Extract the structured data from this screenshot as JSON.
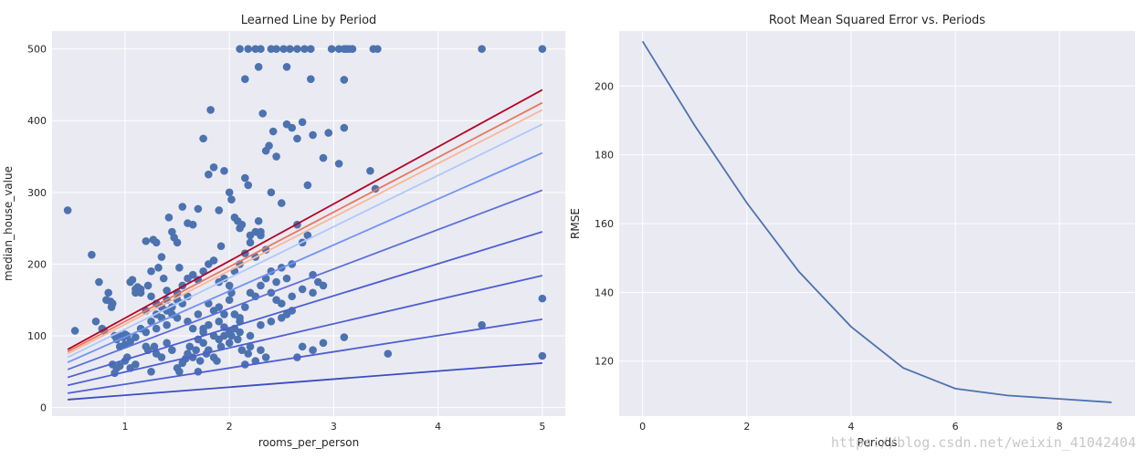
{
  "watermark": "https://blog.csdn.net/weixin_41042404",
  "chart_data": [
    {
      "type": "scatter",
      "title": "Learned Line by Period",
      "xlabel": "rooms_per_person",
      "ylabel": "median_house_value",
      "xlim": [
        0.3,
        5.22
      ],
      "ylim": [
        -12,
        525
      ],
      "xticks": [
        1,
        2,
        3,
        4,
        5
      ],
      "yticks": [
        0,
        100,
        200,
        300,
        400,
        500
      ],
      "grid": true,
      "legend": "none",
      "point_color": "#4c72b0",
      "lines": {
        "x_range": [
          0.45,
          5.0
        ],
        "series": [
          {
            "color": "#3b4cc0",
            "y": [
              11,
              62
            ]
          },
          {
            "color": "#4d5fd0",
            "y": [
              20,
              123
            ]
          },
          {
            "color": "#4d5fd0",
            "y": [
              31,
              184
            ]
          },
          {
            "color": "#4d5fd0",
            "y": [
              42,
              245
            ]
          },
          {
            "color": "#5a6fd8",
            "y": [
              53,
              303
            ]
          },
          {
            "color": "#7093f3",
            "y": [
              63,
              355
            ]
          },
          {
            "color": "#aec9fc",
            "y": [
              70,
              395
            ]
          },
          {
            "color": "#f7b89c",
            "y": [
              75,
              415
            ]
          },
          {
            "color": "#e8765c",
            "y": [
              78,
              425
            ]
          },
          {
            "color": "#b40426",
            "y": [
              81,
              443
            ]
          }
        ]
      },
      "points": [
        [
          0.45,
          275
        ],
        [
          0.52,
          107
        ],
        [
          0.68,
          213
        ],
        [
          0.72,
          120
        ],
        [
          0.75,
          175
        ],
        [
          0.78,
          110
        ],
        [
          0.8,
          107
        ],
        [
          0.82,
          150
        ],
        [
          0.84,
          160
        ],
        [
          0.86,
          148
        ],
        [
          0.87,
          140
        ],
        [
          0.88,
          145
        ],
        [
          0.9,
          100
        ],
        [
          0.92,
          95
        ],
        [
          0.95,
          100
        ],
        [
          0.98,
          98
        ],
        [
          1.0,
          102
        ],
        [
          1.02,
          100
        ],
        [
          1.05,
          175
        ],
        [
          1.07,
          178
        ],
        [
          1.1,
          160
        ],
        [
          1.12,
          168
        ],
        [
          1.15,
          165
        ],
        [
          1.2,
          232
        ],
        [
          1.22,
          170
        ],
        [
          1.25,
          190
        ],
        [
          1.27,
          234
        ],
        [
          1.3,
          230
        ],
        [
          1.32,
          195
        ],
        [
          1.35,
          210
        ],
        [
          1.37,
          180
        ],
        [
          1.4,
          163
        ],
        [
          1.42,
          265
        ],
        [
          1.45,
          245
        ],
        [
          1.47,
          237
        ],
        [
          1.5,
          230
        ],
        [
          1.52,
          195
        ],
        [
          1.55,
          280
        ],
        [
          1.6,
          257
        ],
        [
          1.65,
          255
        ],
        [
          1.7,
          277
        ],
        [
          1.75,
          375
        ],
        [
          1.8,
          325
        ],
        [
          1.82,
          415
        ],
        [
          1.85,
          335
        ],
        [
          1.9,
          275
        ],
        [
          1.92,
          225
        ],
        [
          1.95,
          330
        ],
        [
          2.0,
          300
        ],
        [
          2.02,
          290
        ],
        [
          2.05,
          265
        ],
        [
          2.08,
          260
        ],
        [
          2.1,
          250
        ],
        [
          2.12,
          255
        ],
        [
          2.15,
          320
        ],
        [
          2.18,
          310
        ],
        [
          2.2,
          240
        ],
        [
          2.25,
          245
        ],
        [
          2.28,
          260
        ],
        [
          2.3,
          245
        ],
        [
          2.32,
          410
        ],
        [
          2.35,
          358
        ],
        [
          2.38,
          365
        ],
        [
          2.4,
          300
        ],
        [
          2.42,
          385
        ],
        [
          2.45,
          350
        ],
        [
          2.5,
          285
        ],
        [
          2.55,
          395
        ],
        [
          2.6,
          390
        ],
        [
          2.65,
          375
        ],
        [
          2.7,
          398
        ],
        [
          2.75,
          310
        ],
        [
          2.8,
          380
        ],
        [
          2.9,
          348
        ],
        [
          2.95,
          383
        ],
        [
          3.05,
          340
        ],
        [
          3.1,
          390
        ],
        [
          3.35,
          330
        ],
        [
          3.4,
          305
        ],
        [
          2.15,
          458
        ],
        [
          2.28,
          475
        ],
        [
          2.55,
          475
        ],
        [
          2.78,
          458
        ],
        [
          3.1,
          457
        ],
        [
          2.1,
          500
        ],
        [
          2.18,
          500
        ],
        [
          2.25,
          500
        ],
        [
          2.3,
          500
        ],
        [
          2.4,
          500
        ],
        [
          2.45,
          500
        ],
        [
          2.52,
          500
        ],
        [
          2.58,
          500
        ],
        [
          2.65,
          500
        ],
        [
          2.72,
          500
        ],
        [
          2.78,
          500
        ],
        [
          2.98,
          500
        ],
        [
          3.05,
          500
        ],
        [
          3.1,
          500
        ],
        [
          3.12,
          500
        ],
        [
          3.15,
          500
        ],
        [
          3.18,
          500
        ],
        [
          3.38,
          500
        ],
        [
          3.42,
          500
        ],
        [
          4.42,
          500
        ],
        [
          5.0,
          500
        ],
        [
          0.88,
          60
        ],
        [
          0.9,
          48
        ],
        [
          0.92,
          55
        ],
        [
          0.95,
          58
        ],
        [
          1.0,
          65
        ],
        [
          1.02,
          70
        ],
        [
          1.05,
          55
        ],
        [
          1.1,
          60
        ],
        [
          1.2,
          85
        ],
        [
          1.22,
          80
        ],
        [
          1.25,
          50
        ],
        [
          1.28,
          85
        ],
        [
          1.3,
          75
        ],
        [
          1.35,
          70
        ],
        [
          1.4,
          90
        ],
        [
          1.45,
          80
        ],
        [
          1.5,
          55
        ],
        [
          1.52,
          50
        ],
        [
          1.55,
          62
        ],
        [
          1.58,
          68
        ],
        [
          1.6,
          75
        ],
        [
          1.62,
          85
        ],
        [
          1.65,
          70
        ],
        [
          1.68,
          80
        ],
        [
          1.7,
          50
        ],
        [
          1.72,
          65
        ],
        [
          1.75,
          90
        ],
        [
          1.78,
          75
        ],
        [
          1.8,
          80
        ],
        [
          1.85,
          70
        ],
        [
          1.88,
          65
        ],
        [
          1.9,
          95
        ],
        [
          1.92,
          85
        ],
        [
          1.95,
          100
        ],
        [
          2.0,
          90
        ],
        [
          2.02,
          100
        ],
        [
          2.05,
          110
        ],
        [
          2.08,
          95
        ],
        [
          2.1,
          120
        ],
        [
          2.12,
          80
        ],
        [
          2.15,
          60
        ],
        [
          2.18,
          75
        ],
        [
          2.2,
          85
        ],
        [
          2.25,
          65
        ],
        [
          2.3,
          80
        ],
        [
          2.35,
          70
        ],
        [
          2.5,
          125
        ],
        [
          2.6,
          135
        ],
        [
          2.65,
          70
        ],
        [
          2.7,
          85
        ],
        [
          2.8,
          80
        ],
        [
          2.9,
          90
        ],
        [
          3.1,
          98
        ],
        [
          3.52,
          75
        ],
        [
          4.42,
          115
        ],
        [
          5.0,
          152
        ],
        [
          5.0,
          72
        ],
        [
          1.1,
          165
        ],
        [
          1.15,
          160
        ],
        [
          1.2,
          135
        ],
        [
          1.25,
          155
        ],
        [
          1.3,
          145
        ],
        [
          1.35,
          140
        ],
        [
          1.4,
          150
        ],
        [
          1.45,
          130
        ],
        [
          1.5,
          160
        ],
        [
          1.55,
          170
        ],
        [
          1.6,
          180
        ],
        [
          1.65,
          185
        ],
        [
          1.7,
          178
        ],
        [
          1.75,
          190
        ],
        [
          1.8,
          200
        ],
        [
          1.85,
          205
        ],
        [
          1.9,
          175
        ],
        [
          1.95,
          180
        ],
        [
          2.0,
          170
        ],
        [
          2.02,
          160
        ],
        [
          2.05,
          190
        ],
        [
          2.1,
          200
        ],
        [
          2.15,
          215
        ],
        [
          2.2,
          230
        ],
        [
          2.25,
          210
        ],
        [
          2.3,
          240
        ],
        [
          2.35,
          220
        ],
        [
          2.4,
          190
        ],
        [
          2.45,
          175
        ],
        [
          2.5,
          195
        ],
        [
          2.55,
          180
        ],
        [
          2.6,
          200
        ],
        [
          2.65,
          255
        ],
        [
          2.7,
          230
        ],
        [
          2.75,
          240
        ],
        [
          2.8,
          185
        ],
        [
          2.85,
          175
        ],
        [
          1.3,
          110
        ],
        [
          1.4,
          115
        ],
        [
          1.5,
          125
        ],
        [
          1.6,
          120
        ],
        [
          1.7,
          130
        ],
        [
          1.75,
          110
        ],
        [
          1.8,
          145
        ],
        [
          1.85,
          135
        ],
        [
          1.9,
          140
        ],
        [
          1.95,
          130
        ],
        [
          2.0,
          150
        ],
        [
          2.05,
          130
        ],
        [
          2.1,
          125
        ],
        [
          2.15,
          140
        ],
        [
          2.2,
          160
        ],
        [
          2.25,
          155
        ],
        [
          2.3,
          170
        ],
        [
          2.35,
          180
        ],
        [
          2.4,
          160
        ],
        [
          2.45,
          150
        ],
        [
          2.5,
          145
        ],
        [
          2.55,
          130
        ],
        [
          2.6,
          155
        ],
        [
          2.7,
          165
        ],
        [
          2.8,
          160
        ],
        [
          2.9,
          170
        ],
        [
          0.95,
          85
        ],
        [
          1.0,
          88
        ],
        [
          1.05,
          92
        ],
        [
          1.1,
          98
        ],
        [
          1.15,
          110
        ],
        [
          1.2,
          105
        ],
        [
          1.25,
          120
        ],
        [
          1.3,
          130
        ],
        [
          1.35,
          125
        ],
        [
          1.4,
          135
        ],
        [
          1.45,
          140
        ],
        [
          1.5,
          150
        ],
        [
          1.55,
          145
        ],
        [
          1.6,
          155
        ],
        [
          1.65,
          110
        ],
        [
          1.7,
          95
        ],
        [
          1.75,
          105
        ],
        [
          1.8,
          115
        ],
        [
          1.85,
          100
        ],
        [
          1.9,
          120
        ],
        [
          1.95,
          112
        ],
        [
          2.0,
          105
        ],
        [
          2.1,
          105
        ],
        [
          2.2,
          100
        ],
        [
          2.3,
          115
        ],
        [
          2.4,
          120
        ]
      ]
    },
    {
      "type": "line",
      "title": "Root Mean Squared Error vs. Periods",
      "xlabel": "Periods",
      "ylabel": "RMSE",
      "xlim": [
        -0.45,
        9.45
      ],
      "ylim": [
        104,
        216
      ],
      "xticks": [
        0,
        2,
        4,
        6,
        8
      ],
      "yticks": [
        120,
        140,
        160,
        180,
        200
      ],
      "grid": true,
      "legend": "none",
      "line_color": "#4c72b0",
      "x": [
        0,
        1,
        2,
        3,
        4,
        5,
        6,
        7,
        8,
        9
      ],
      "y": [
        213,
        188.5,
        166,
        146,
        130,
        118,
        112,
        110,
        109,
        108
      ]
    }
  ]
}
